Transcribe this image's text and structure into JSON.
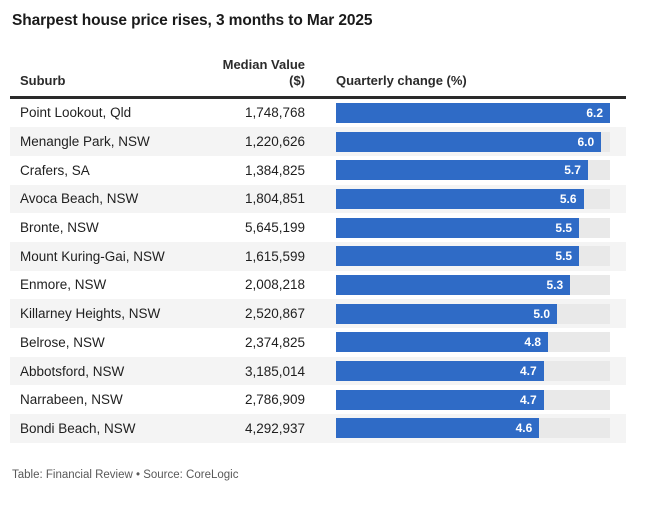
{
  "title": "Sharpest house price rises, 3 months to Mar 2025",
  "header": {
    "suburb": "Suburb",
    "median_line1": "Median Value",
    "median_line2": "($)",
    "change": "Quarterly change (%)"
  },
  "rows": [
    {
      "suburb": "Point Lookout, Qld",
      "median": "1,748,768",
      "change": "6.2"
    },
    {
      "suburb": "Menangle Park, NSW",
      "median": "1,220,626",
      "change": "6.0"
    },
    {
      "suburb": "Crafers, SA",
      "median": "1,384,825",
      "change": "5.7"
    },
    {
      "suburb": "Avoca Beach, NSW",
      "median": "1,804,851",
      "change": "5.6"
    },
    {
      "suburb": "Bronte, NSW",
      "median": "5,645,199",
      "change": "5.5"
    },
    {
      "suburb": "Mount Kuring-Gai, NSW",
      "median": "1,615,599",
      "change": "5.5"
    },
    {
      "suburb": "Enmore, NSW",
      "median": "2,008,218",
      "change": "5.3"
    },
    {
      "suburb": "Killarney Heights, NSW",
      "median": "2,520,867",
      "change": "5.0"
    },
    {
      "suburb": "Belrose, NSW",
      "median": "2,374,825",
      "change": "4.8"
    },
    {
      "suburb": "Abbotsford, NSW",
      "median": "3,185,014",
      "change": "4.7"
    },
    {
      "suburb": "Narrabeen, NSW",
      "median": "2,786,909",
      "change": "4.7"
    },
    {
      "suburb": "Bondi Beach, NSW",
      "median": "4,292,937",
      "change": "4.6"
    }
  ],
  "footer": "Table: Financial Review • Source: CoreLogic",
  "colors": {
    "bar": "#2f6bc6",
    "track": "#e9e9e9",
    "even_row_bg": "#f4f4f4",
    "rule": "#2a2a2a",
    "title_text": "#1a1a1a",
    "footer_text": "#595959"
  },
  "chart_data": {
    "type": "bar",
    "title": "Sharpest house price rises, 3 months to Mar 2025",
    "columns": [
      "Suburb",
      "Median Value ($)",
      "Quarterly change (%)"
    ],
    "categories": [
      "Point Lookout, Qld",
      "Menangle Park, NSW",
      "Crafers, SA",
      "Avoca Beach, NSW",
      "Bronte, NSW",
      "Mount Kuring-Gai, NSW",
      "Enmore, NSW",
      "Killarney Heights, NSW",
      "Belrose, NSW",
      "Abbotsford, NSW",
      "Narrabeen, NSW",
      "Bondi Beach, NSW"
    ],
    "median_values": [
      1748768,
      1220626,
      1384825,
      1804851,
      5645199,
      1615599,
      2008218,
      2520867,
      2374825,
      3185014,
      2786909,
      4292937
    ],
    "values": [
      6.2,
      6.0,
      5.7,
      5.6,
      5.5,
      5.5,
      5.3,
      5.0,
      4.8,
      4.7,
      4.7,
      4.6
    ],
    "xlabel": "Quarterly change (%)",
    "ylabel": "Suburb",
    "xlim": [
      0,
      6.2
    ],
    "orientation": "horizontal",
    "grid": false,
    "legend": false,
    "bar_color": "#2f6bc6",
    "source_note": "Table: Financial Review • Source: CoreLogic"
  }
}
